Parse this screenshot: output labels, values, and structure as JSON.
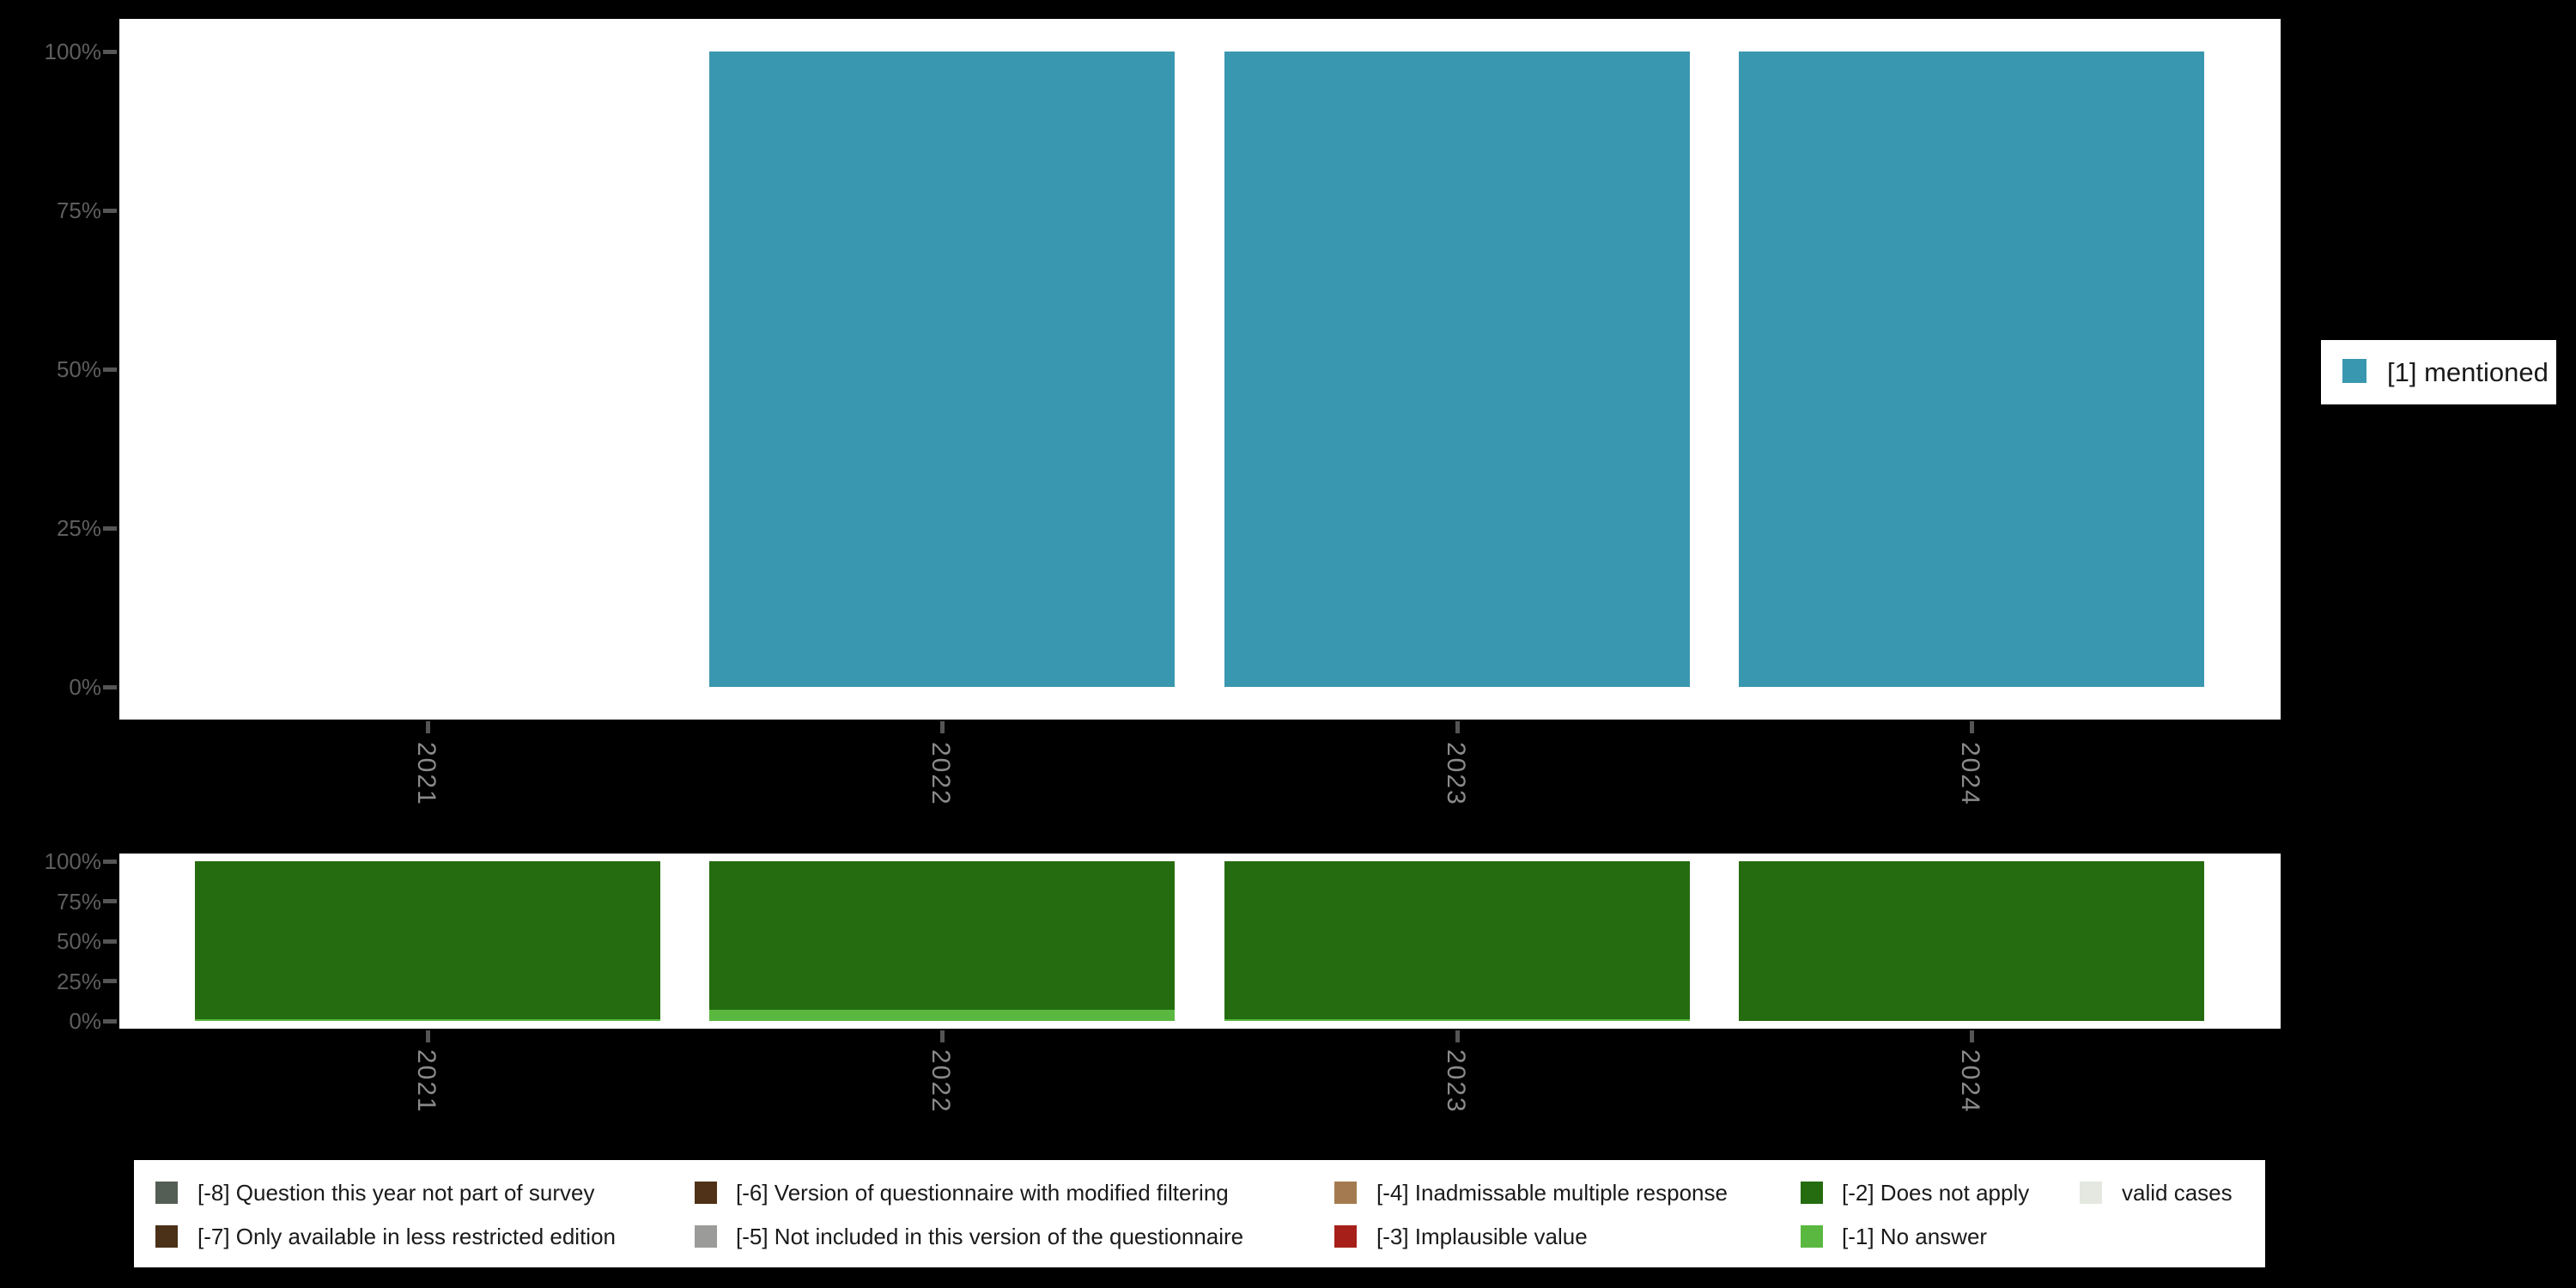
{
  "colors": {
    "background": "#000000",
    "panel": "#ffffff",
    "legend_box": "#ffffff",
    "y_label": "#5e5e5e",
    "x_label": "#8a8a8a",
    "tick": "#555555",
    "legend_text": "#1a1a1a"
  },
  "top_legend": {
    "swatch_color": "#3a97b0",
    "label": "[1] mentioned"
  },
  "missing_legend": {
    "entries": [
      {
        "label": "[-8] Question this year not part of survey",
        "color": "#555e54",
        "col": 0,
        "row": 0
      },
      {
        "label": "[-7] Only available in less restricted edition",
        "color": "#4a3118",
        "col": 0,
        "row": 1
      },
      {
        "label": "[-6] Version of questionnaire with modified filtering",
        "color": "#4f3217",
        "col": 1,
        "row": 0
      },
      {
        "label": "[-5] Not included in this version of the questionnaire",
        "color": "#9b9b99",
        "col": 1,
        "row": 1
      },
      {
        "label": "[-4] Inadmissable multiple response",
        "color": "#a47b50",
        "col": 2,
        "row": 0
      },
      {
        "label": "[-3] Implausible value",
        "color": "#a62019",
        "col": 2,
        "row": 1
      },
      {
        "label": "[-2] Does not apply",
        "color": "#256c10",
        "col": 3,
        "row": 0
      },
      {
        "label": "[-1] No answer",
        "color": "#5ab840",
        "col": 3,
        "row": 1
      },
      {
        "label": "valid cases",
        "color": "#e4e8e0",
        "col": 4,
        "row": 0
      }
    ]
  },
  "chart_data": [
    {
      "type": "bar",
      "title": "",
      "categories": [
        "2021",
        "2022",
        "2023",
        "2024"
      ],
      "series": [
        {
          "name": "[1] mentioned",
          "color": "#3a97b0",
          "values": [
            null,
            100,
            100,
            100
          ]
        }
      ],
      "xlabel": "",
      "ylabel": "",
      "ylim": [
        0,
        100
      ],
      "yticks": [
        "100%",
        "75%",
        "50%",
        "25%",
        "0%"
      ],
      "grid": false,
      "legend_position": "right"
    },
    {
      "type": "bar",
      "subtype": "stacked",
      "stack_order": "bottom-to-top",
      "title": "",
      "categories": [
        "2021",
        "2022",
        "2023",
        "2024"
      ],
      "series": [
        {
          "name": "[-1] No answer",
          "color": "#5ab840",
          "values": [
            1,
            7,
            1,
            0
          ]
        },
        {
          "name": "[-2] Does not apply",
          "color": "#256c10",
          "values": [
            99,
            93,
            99,
            100
          ]
        }
      ],
      "xlabel": "",
      "ylabel": "",
      "ylim": [
        0,
        100
      ],
      "yticks": [
        "100%",
        "75%",
        "50%",
        "25%",
        "0%"
      ],
      "grid": false,
      "legend_position": "bottom"
    }
  ]
}
